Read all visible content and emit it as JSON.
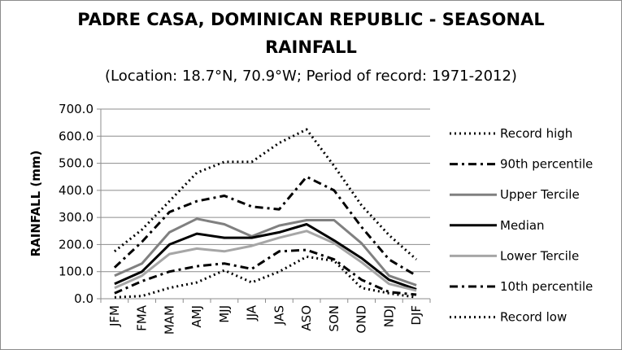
{
  "chart_data": {
    "type": "line",
    "title": "PADRE CASA, DOMINICAN REPUBLIC - SEASONAL",
    "title_line2": "RAINFALL",
    "subtitle": "(Location: 18.7°N, 70.9°W; Period of record: 1971-2012)",
    "xlabel": "",
    "ylabel": "RAINFALL (mm)",
    "ylim": [
      0,
      700
    ],
    "yticks": [
      "0.0",
      "100.0",
      "200.0",
      "300.0",
      "400.0",
      "500.0",
      "600.0",
      "700.0"
    ],
    "grid": true,
    "legend_position": "right",
    "categories": [
      "JFM",
      "FMA",
      "MAM",
      "AMJ",
      "MJJ",
      "JJA",
      "JAS",
      "ASO",
      "SON",
      "OND",
      "NDJ",
      "DJF"
    ],
    "series": [
      {
        "name": "Record high",
        "style": "dotted",
        "color": "#000000",
        "values": [
          175,
          255,
          360,
          465,
          505,
          505,
          575,
          625,
          490,
          345,
          235,
          145
        ]
      },
      {
        "name": "90th percentile",
        "style": "dashdot",
        "color": "#000000",
        "values": [
          115,
          210,
          320,
          360,
          380,
          340,
          330,
          450,
          400,
          265,
          145,
          85
        ]
      },
      {
        "name": "Upper Tercile",
        "style": "solid",
        "color": "#808080",
        "values": [
          85,
          130,
          245,
          295,
          275,
          230,
          270,
          290,
          290,
          205,
          85,
          50
        ]
      },
      {
        "name": "Median",
        "style": "solid",
        "color": "#000000",
        "values": [
          55,
          100,
          200,
          240,
          225,
          225,
          245,
          275,
          215,
          150,
          70,
          35
        ]
      },
      {
        "name": "Lower Tercile",
        "style": "solid",
        "color": "#a6a6a6",
        "values": [
          40,
          85,
          165,
          185,
          175,
          195,
          225,
          250,
          205,
          135,
          55,
          30
        ]
      },
      {
        "name": "10th percentile",
        "style": "dashdot",
        "color": "#000000",
        "values": [
          20,
          65,
          100,
          120,
          130,
          110,
          175,
          180,
          145,
          70,
          25,
          15
        ]
      },
      {
        "name": "Record low",
        "style": "dotted",
        "color": "#000000",
        "values": [
          5,
          10,
          40,
          60,
          105,
          60,
          100,
          155,
          140,
          40,
          20,
          5
        ]
      }
    ]
  }
}
